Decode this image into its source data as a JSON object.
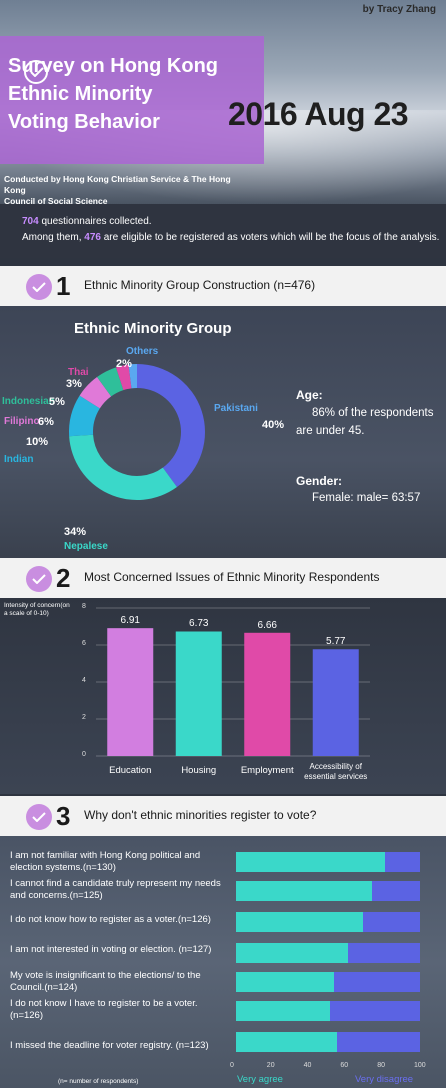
{
  "header": {
    "author": "by Tracy Zhang",
    "title_lines": [
      "Survey on Hong Kong",
      "Ethnic Minority",
      "Voting Behavior"
    ],
    "date": "2016 Aug 23",
    "conducted_lines": [
      "Conducted by Hong Kong Christian Service & The Hong Kong",
      "Council of Social Science"
    ]
  },
  "intro": {
    "count_collected": "704",
    "line1_rest": " questionnaires collected.",
    "line2_pre": "Among them, ",
    "count_eligible": "476",
    "line2_rest": " are eligible to be registered as voters which will be the focus of the analysis."
  },
  "sections": [
    {
      "number": "1",
      "label": "Ethnic Minority Group Construction (n=476)"
    },
    {
      "number": "2",
      "label": "Most Concerned Issues of Ethnic Minority Respondents"
    },
    {
      "number": "3",
      "label": "Why don't ethnic minorities register to vote?"
    }
  ],
  "colors": {
    "purple": "#c98ee0",
    "teal": "#3ad8c9",
    "blue": "#5b63e3",
    "magenta": "#e04aa8",
    "sky": "#29b6e0",
    "green": "#2fbf9a",
    "pink": "#e079d8"
  },
  "demographics": {
    "age_title": "Age:",
    "age_line1": "86% of the respondents",
    "age_line2": "are under 45.",
    "gender_title": "Gender:",
    "gender_line": "Female: male= 63:57"
  },
  "chart_data": [
    {
      "type": "pie",
      "title": "Ethnic Minority Group",
      "categories": [
        "Pakistani",
        "Nepalese",
        "Indian",
        "Filipino",
        "Indonesian",
        "Thai",
        "Others"
      ],
      "values": [
        40,
        34,
        10,
        6,
        5,
        3,
        2
      ],
      "value_labels": [
        "40%",
        "34%",
        "10%",
        "6%",
        "5%",
        "3%",
        "2%"
      ],
      "colors": [
        "#5b63e3",
        "#3ad8c9",
        "#29b6e0",
        "#e079d8",
        "#2fbf9a",
        "#e04aa8",
        "#5aa8f0"
      ],
      "label_colors": [
        "#5aa8f0",
        "#3ad8c9",
        "#29b6e0",
        "#e079d8",
        "#2fbf9a",
        "#e04aa8",
        "#5aa8f0"
      ]
    },
    {
      "type": "bar",
      "ylabel": "Intensity of concern(on a scale of 0-10)",
      "categories": [
        "Education",
        "Housing",
        "Employment",
        "Accessibility of essential services"
      ],
      "values": [
        6.91,
        6.73,
        6.66,
        5.77
      ],
      "value_labels": [
        "6.91",
        "6.73",
        "6.66",
        "5.77"
      ],
      "ylim": [
        0,
        8
      ],
      "yticks": [
        "0",
        "2",
        "4",
        "6",
        "8"
      ],
      "colors": [
        "#d27ee0",
        "#3ad8c9",
        "#e04aa8",
        "#5b63e3"
      ]
    },
    {
      "type": "bar",
      "orientation": "horizontal-stacked",
      "categories": [
        "I am not familiar with Hong Kong political and election systems.(n=130)",
        "I cannot find a candidate truly represent my needs and concerns.(n=125)",
        "I do not know how to register as a voter.(n=126)",
        "I am not interested in voting or election. (n=127)",
        "My vote is insignificant to the elections/ to the Council.(n=124)",
        "I do not know I have to register to be a voter. (n=126)",
        "I missed the deadline for voter registry. (n=123)"
      ],
      "series": [
        {
          "name": "Very agree",
          "values": [
            81,
            74,
            69,
            61,
            53,
            51,
            55
          ]
        },
        {
          "name": "Very disagree",
          "values": [
            19,
            26,
            31,
            39,
            47,
            49,
            45
          ]
        }
      ],
      "xlim": [
        0,
        100
      ],
      "xticks": [
        "0",
        "20",
        "40",
        "60",
        "80",
        "100"
      ],
      "footnote": "(n= number of respondents)"
    }
  ]
}
